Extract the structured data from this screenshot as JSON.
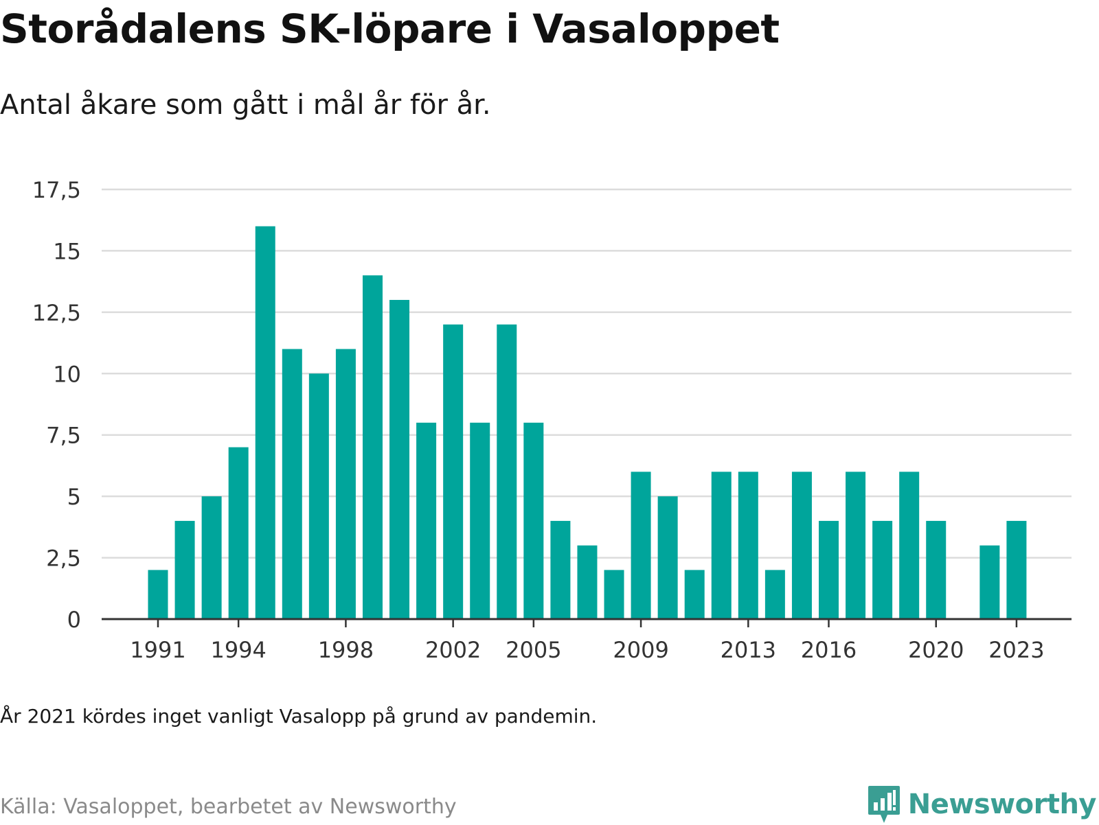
{
  "title": "Storådalens SK-löpare i Vasaloppet",
  "subtitle": "Antal åkare som gått i mål år för år.",
  "note": "År 2021 kördes inget vanligt Vasalopp på grund av pandemin.",
  "source": "Källa: Vasaloppet, bearbetet av Newsworthy",
  "brand": {
    "name": "Newsworthy",
    "icon": "newsworthy-logo-icon",
    "color": "#3a9e93"
  },
  "colors": {
    "bar": "#00a59b",
    "grid": "#dcdcdc",
    "axis": "#333333"
  },
  "chart_data": {
    "type": "bar",
    "title": "Storådalens SK-löpare i Vasaloppet",
    "subtitle": "Antal åkare som gått i mål år för år.",
    "xlabel": "",
    "ylabel": "",
    "categories": [
      1991,
      1992,
      1993,
      1994,
      1995,
      1996,
      1997,
      1998,
      1999,
      2000,
      2001,
      2002,
      2003,
      2004,
      2005,
      2006,
      2007,
      2008,
      2009,
      2010,
      2011,
      2012,
      2013,
      2014,
      2015,
      2016,
      2017,
      2018,
      2019,
      2020,
      2021,
      2022,
      2023
    ],
    "values": [
      2,
      4,
      5,
      7,
      16,
      11,
      10,
      11,
      14,
      13,
      8,
      12,
      8,
      12,
      8,
      4,
      3,
      2,
      6,
      5,
      2,
      6,
      6,
      2,
      6,
      4,
      6,
      4,
      6,
      4,
      null,
      3,
      4
    ],
    "ylim": [
      0,
      17.5
    ],
    "yticks": [
      0,
      2.5,
      5,
      7.5,
      10,
      12.5,
      15,
      17.5
    ],
    "ytick_labels": [
      "0",
      "2,5",
      "5",
      "7,5",
      "10",
      "12,5",
      "15",
      "17,5"
    ],
    "xticks_shown": [
      1991,
      1994,
      1998,
      2002,
      2005,
      2009,
      2013,
      2016,
      2020,
      2023
    ],
    "grid": "horizontal",
    "legend": "none"
  }
}
